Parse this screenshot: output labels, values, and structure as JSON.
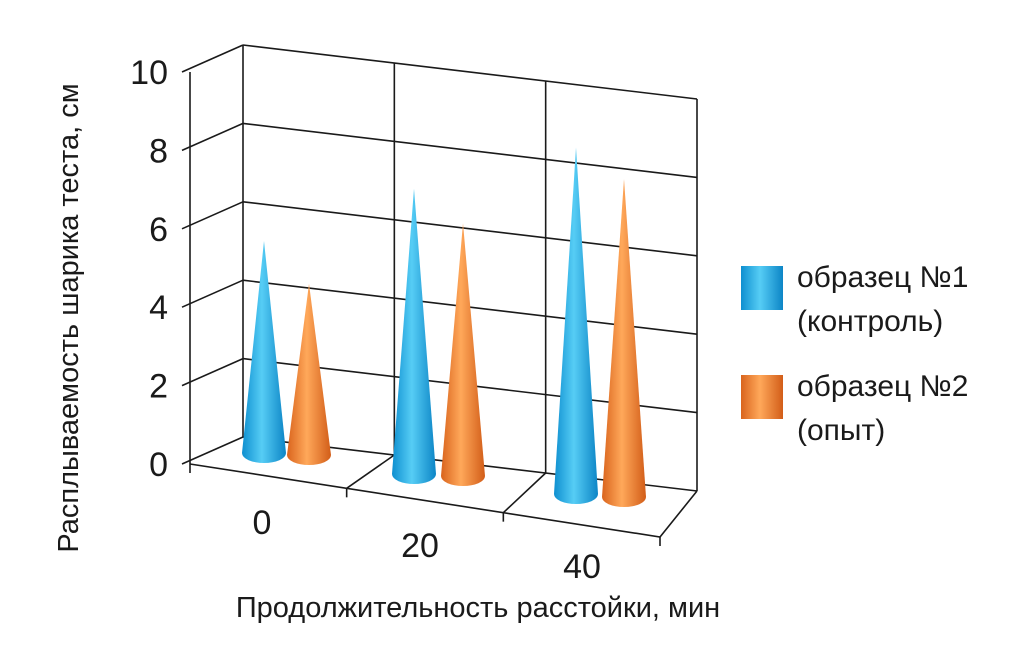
{
  "chart_data": {
    "type": "bar",
    "style": "3d-cone",
    "categories": [
      "0",
      "20",
      "40"
    ],
    "series": [
      {
        "name_line1": "образец №1",
        "name_line2": "(контроль)",
        "color": "#1aa7e3",
        "values": [
          5.2,
          7.0,
          8.5
        ]
      },
      {
        "name_line1": "образец №2",
        "name_line2": "(опыт)",
        "color": "#f07f2e",
        "values": [
          4.2,
          6.2,
          7.8
        ]
      }
    ],
    "xlabel": "Продолжительность расстойки, мин",
    "ylabel": "Расплываемость шарика теста, см",
    "ylim": [
      0,
      10
    ],
    "yticks": [
      "0",
      "2",
      "4",
      "6",
      "8",
      "10"
    ],
    "grid": true,
    "legend_position": "right"
  }
}
